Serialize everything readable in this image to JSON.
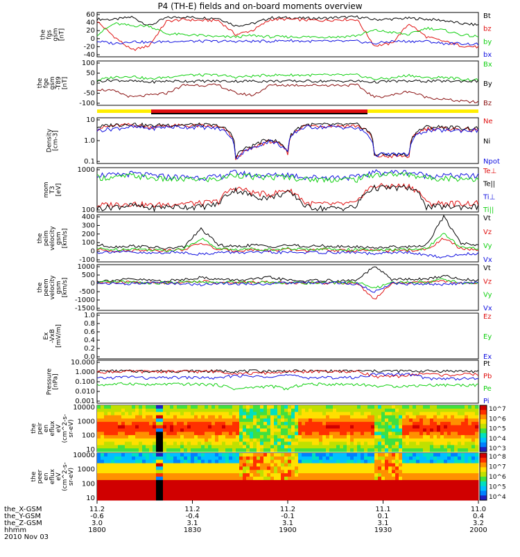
{
  "title": "P4 (TH-E) fields and on-board moments overview",
  "date": "2010 Nov 03",
  "orbit_labels": [
    "the_X-GSM",
    "the_Y-GSM",
    "the_Z-GSM",
    "hhmm"
  ],
  "x_axis": [
    {
      "xgsm": "11.2",
      "ygsm": "-0.6",
      "zgsm": "3.0",
      "hhmm": "1800"
    },
    {
      "xgsm": "11.2",
      "ygsm": "-0.4",
      "zgsm": "3.1",
      "hhmm": "1830"
    },
    {
      "xgsm": "11.2",
      "ygsm": "-0.1",
      "zgsm": "3.1",
      "hhmm": "1900"
    },
    {
      "xgsm": "11.1",
      "ygsm": "0.1",
      "zgsm": "3.1",
      "hhmm": "1930"
    },
    {
      "xgsm": "11.0",
      "ygsm": "0.4",
      "zgsm": "3.2",
      "hhmm": "2000"
    }
  ],
  "colors": {
    "black": "#000000",
    "red": "#e01010",
    "green": "#10d010",
    "blue": "#1010e0",
    "yellow": "#ffee00",
    "darkred": "#8a1010"
  },
  "chart_data": [
    {
      "type": "line",
      "ylabel": [
        "the",
        "fgs",
        "gsm",
        "[nT]"
      ],
      "ylim": [
        -40,
        60
      ],
      "ticks": [
        "60",
        "40",
        "20",
        "0",
        "-20",
        "-40"
      ],
      "grid": false,
      "legend": "right",
      "series": [
        {
          "name": "Bt",
          "color": "#000000",
          "values": [
            45,
            44,
            50,
            30,
            48,
            50,
            48,
            47,
            30,
            35,
            48,
            48,
            47,
            47,
            49,
            50,
            44,
            45,
            47,
            45,
            42,
            35,
            32
          ]
        },
        {
          "name": "bz",
          "color": "#e01010",
          "values": [
            40,
            5,
            -25,
            -15,
            40,
            44,
            42,
            42,
            10,
            20,
            44,
            45,
            43,
            42,
            44,
            44,
            -15,
            -10,
            35,
            5,
            -5,
            -15,
            -18
          ]
        },
        {
          "name": "by",
          "color": "#10d010",
          "values": [
            10,
            35,
            30,
            30,
            12,
            10,
            8,
            5,
            5,
            8,
            5,
            5,
            5,
            5,
            5,
            8,
            20,
            15,
            10,
            25,
            20,
            10,
            5
          ]
        },
        {
          "name": "bx",
          "color": "#1010e0",
          "values": [
            -5,
            -10,
            -5,
            -8,
            -5,
            -5,
            -5,
            -5,
            -5,
            -5,
            -5,
            -3,
            -5,
            -5,
            -5,
            -5,
            -10,
            -5,
            -5,
            -5,
            -10,
            -10,
            -12
          ]
        }
      ]
    },
    {
      "type": "line",
      "ylabel": [
        "the",
        "fge",
        "gsm",
        "-T89",
        "[nT]"
      ],
      "ylim": [
        -120,
        100
      ],
      "ticks": [
        "100",
        "50",
        "0",
        "-50",
        "-100"
      ],
      "grid": false,
      "legend": "right",
      "series": [
        {
          "name": "Bx",
          "color": "#10d010",
          "values": [
            5,
            20,
            25,
            10,
            20,
            30,
            30,
            30,
            20,
            25,
            30,
            30,
            30,
            30,
            30,
            30,
            10,
            15,
            30,
            15,
            20,
            10,
            5
          ]
        },
        {
          "name": "By",
          "color": "#000000",
          "values": [
            0,
            5,
            0,
            -5,
            0,
            0,
            0,
            0,
            0,
            0,
            0,
            0,
            0,
            0,
            0,
            0,
            -5,
            0,
            0,
            0,
            0,
            0,
            0
          ]
        },
        {
          "name": "Bz",
          "color": "#8a1010",
          "values": [
            -40,
            -50,
            -80,
            -70,
            -60,
            -20,
            -20,
            -20,
            -60,
            -70,
            -20,
            -20,
            -20,
            -20,
            -20,
            -20,
            -80,
            -70,
            -50,
            -80,
            -90,
            -100,
            -105
          ]
        }
      ]
    },
    {
      "type": "line",
      "ylabel": [
        "Density",
        "[cm-3]"
      ],
      "ylim": [
        0.1,
        100
      ],
      "log": true,
      "ticks": [
        "10",
        "1.0",
        "0.1"
      ],
      "grid": false,
      "legend": "right",
      "series": [
        {
          "name": "Ne",
          "color": "#e01010",
          "values": [
            20,
            30,
            35,
            25,
            30,
            30,
            30,
            25,
            0.2,
            1,
            3,
            0.5,
            30,
            30,
            30,
            30,
            0.3,
            0.3,
            0.3,
            20,
            20,
            18,
            15
          ]
        },
        {
          "name": "Ni",
          "color": "#000000",
          "values": [
            25,
            35,
            40,
            30,
            35,
            35,
            35,
            30,
            0.3,
            1.5,
            4,
            0.6,
            35,
            35,
            35,
            35,
            0.4,
            0.4,
            0.4,
            25,
            25,
            22,
            20
          ]
        },
        {
          "name": "Npot",
          "color": "#1010e0",
          "values": [
            15,
            20,
            25,
            20,
            25,
            25,
            25,
            20,
            0.2,
            1,
            3,
            0.5,
            25,
            25,
            25,
            20,
            0.4,
            0.4,
            0.4,
            15,
            15,
            15,
            15
          ]
        }
      ]
    },
    {
      "type": "line",
      "ylabel": [
        "mom",
        "T3",
        "[eV]"
      ],
      "ylim": [
        40,
        4000
      ],
      "log": true,
      "ticks": [
        "1000",
        "100"
      ],
      "grid": false,
      "legend": "right",
      "series": [
        {
          "name": "Te⊥",
          "color": "#e01010",
          "values": [
            80,
            90,
            100,
            80,
            90,
            100,
            100,
            120,
            500,
            300,
            250,
            400,
            100,
            90,
            90,
            100,
            600,
            600,
            600,
            100,
            100,
            100,
            100
          ]
        },
        {
          "name": "Te||",
          "color": "#000000",
          "values": [
            60,
            70,
            80,
            60,
            70,
            70,
            70,
            90,
            400,
            200,
            180,
            300,
            70,
            60,
            60,
            70,
            500,
            500,
            500,
            70,
            70,
            70,
            70
          ]
        },
        {
          "name": "Ti⊥",
          "color": "#1010e0",
          "values": [
            2000,
            1800,
            2200,
            1800,
            1600,
            1500,
            1500,
            1500,
            2500,
            1800,
            1800,
            2000,
            1500,
            1500,
            1500,
            1500,
            2500,
            2500,
            2500,
            1800,
            1800,
            1700,
            1700
          ]
        },
        {
          "name": "Ti||",
          "color": "#10d010",
          "values": [
            1500,
            1400,
            1800,
            1400,
            1200,
            1200,
            1200,
            1200,
            2000,
            1500,
            1500,
            1600,
            1200,
            1200,
            1200,
            1200,
            2000,
            2000,
            2000,
            1400,
            1400,
            1300,
            1300
          ]
        }
      ]
    },
    {
      "type": "line",
      "ylabel": [
        "the",
        "peim",
        "velocity",
        "gsm",
        "[km/s]"
      ],
      "ylim": [
        -100,
        400
      ],
      "ticks": [
        "400",
        "300",
        "200",
        "100",
        "0",
        "-100"
      ],
      "grid": false,
      "legend": "right",
      "series": [
        {
          "name": "Vt",
          "color": "#000000",
          "values": [
            80,
            60,
            70,
            60,
            40,
            60,
            250,
            80,
            60,
            80,
            60,
            80,
            60,
            70,
            60,
            60,
            50,
            60,
            60,
            80,
            380,
            100,
            80
          ]
        },
        {
          "name": "Vz",
          "color": "#e01010",
          "values": [
            30,
            20,
            20,
            30,
            20,
            30,
            100,
            30,
            20,
            30,
            20,
            30,
            20,
            30,
            20,
            20,
            20,
            20,
            20,
            30,
            150,
            40,
            30
          ]
        },
        {
          "name": "Vy",
          "color": "#10d010",
          "values": [
            40,
            30,
            40,
            30,
            20,
            40,
            150,
            40,
            30,
            40,
            30,
            40,
            30,
            40,
            30,
            30,
            20,
            30,
            30,
            40,
            200,
            50,
            40
          ]
        },
        {
          "name": "Vx",
          "color": "#1010e0",
          "values": [
            0,
            10,
            0,
            -10,
            0,
            0,
            -20,
            0,
            0,
            0,
            0,
            0,
            0,
            0,
            0,
            0,
            -20,
            0,
            0,
            -30,
            -50,
            -20,
            -10
          ]
        }
      ]
    },
    {
      "type": "line",
      "ylabel": [
        "the",
        "peem",
        "velocity",
        "gsm",
        "[km/s]"
      ],
      "ylim": [
        -1500,
        1000
      ],
      "ticks": [
        "1000",
        "500",
        "0",
        "-500",
        "-1000",
        "-1500"
      ],
      "grid": false,
      "legend": "right",
      "series": [
        {
          "name": "Vt",
          "color": "#000000",
          "values": [
            100,
            150,
            200,
            150,
            100,
            200,
            300,
            200,
            150,
            200,
            300,
            150,
            100,
            150,
            100,
            150,
            900,
            200,
            200,
            200,
            400,
            200,
            150
          ]
        },
        {
          "name": "Vz",
          "color": "#e01010",
          "values": [
            0,
            20,
            50,
            0,
            0,
            50,
            100,
            0,
            0,
            50,
            50,
            0,
            0,
            0,
            0,
            0,
            -900,
            0,
            0,
            50,
            100,
            0,
            0
          ]
        },
        {
          "name": "Vy",
          "color": "#10d010",
          "values": [
            0,
            50,
            50,
            0,
            0,
            50,
            50,
            0,
            50,
            50,
            50,
            0,
            0,
            0,
            0,
            50,
            -300,
            0,
            50,
            50,
            200,
            0,
            0
          ]
        },
        {
          "name": "Vx",
          "color": "#1010e0",
          "values": [
            0,
            -30,
            -50,
            0,
            0,
            -50,
            -100,
            0,
            -50,
            -50,
            -50,
            0,
            0,
            0,
            0,
            -50,
            -500,
            0,
            -50,
            -50,
            -100,
            0,
            0
          ]
        }
      ]
    },
    {
      "type": "line",
      "ylabel": [
        "Ex",
        "-VxB",
        "[mV/m]"
      ],
      "ylim": [
        0,
        1
      ],
      "ticks": [
        "1.0",
        "0.8",
        "0.6",
        "0.4",
        "0.2",
        "0.0"
      ],
      "grid": false,
      "legend": "right",
      "series": [
        {
          "name": "Ez",
          "color": "#e01010",
          "values": []
        },
        {
          "name": "Ey",
          "color": "#10d010",
          "values": []
        },
        {
          "name": "Ex",
          "color": "#1010e0",
          "values": []
        }
      ]
    },
    {
      "type": "line",
      "ylabel": [
        "Pressure",
        "[nPa]"
      ],
      "ylim": [
        0.001,
        10
      ],
      "log": true,
      "ticks": [
        "10.000",
        "1.000",
        "0.100",
        "0.010",
        "0.001"
      ],
      "grid": false,
      "legend": "right",
      "series": [
        {
          "name": "Pt",
          "color": "#000000",
          "values": [
            1.0,
            1.0,
            1.0,
            1.0,
            1.0,
            1.0,
            1.0,
            1.0,
            1.0,
            1.0,
            1.0,
            1.0,
            1.0,
            1.0,
            1.0,
            1.0,
            1.0,
            1.0,
            1.0,
            1.0,
            1.0,
            1.0,
            0.9
          ]
        },
        {
          "name": "Pb",
          "color": "#e01010",
          "values": [
            0.8,
            0.9,
            0.9,
            0.9,
            0.9,
            0.9,
            0.9,
            0.9,
            0.6,
            0.6,
            0.7,
            0.8,
            0.9,
            0.9,
            0.9,
            0.9,
            0.3,
            0.3,
            0.4,
            0.6,
            0.4,
            0.5,
            0.5
          ]
        },
        {
          "name": "Pe",
          "color": "#10d010",
          "values": [
            0.05,
            0.06,
            0.07,
            0.05,
            0.06,
            0.06,
            0.06,
            0.05,
            0.02,
            0.03,
            0.04,
            0.02,
            0.06,
            0.06,
            0.06,
            0.06,
            0.04,
            0.04,
            0.04,
            0.05,
            0.05,
            0.05,
            0.05
          ]
        },
        {
          "name": "Pi",
          "color": "#1010e0",
          "values": [
            0.2,
            0.25,
            0.3,
            0.2,
            0.25,
            0.25,
            0.25,
            0.2,
            0.4,
            0.3,
            0.35,
            0.4,
            0.25,
            0.25,
            0.25,
            0.25,
            0.5,
            0.5,
            0.5,
            0.2,
            0.2,
            0.2,
            0.2
          ]
        }
      ]
    },
    {
      "type": "heatmap",
      "ylabel": [
        "the",
        "peir",
        "en",
        "eflux",
        "eV",
        "(cm^2-s-",
        "sr-eV)"
      ],
      "ylim": [
        10,
        20000
      ],
      "log": true,
      "ticks": [
        "10000",
        "1000",
        "100",
        "10"
      ],
      "colorbar_ticks": [
        "10^7",
        "10^6",
        "10^5",
        "10^4",
        "10^3"
      ]
    },
    {
      "type": "heatmap",
      "ylabel": [
        "the",
        "peer",
        "en",
        "eflux",
        "eV",
        "(cm^2-s-",
        "sr-eV)"
      ],
      "ylim": [
        10,
        20000
      ],
      "log": true,
      "ticks": [
        "10000",
        "1000",
        "100",
        "10"
      ],
      "colorbar_ticks": [
        "10^8",
        "10^7",
        "10^6",
        "10^5",
        "10^4"
      ]
    }
  ]
}
